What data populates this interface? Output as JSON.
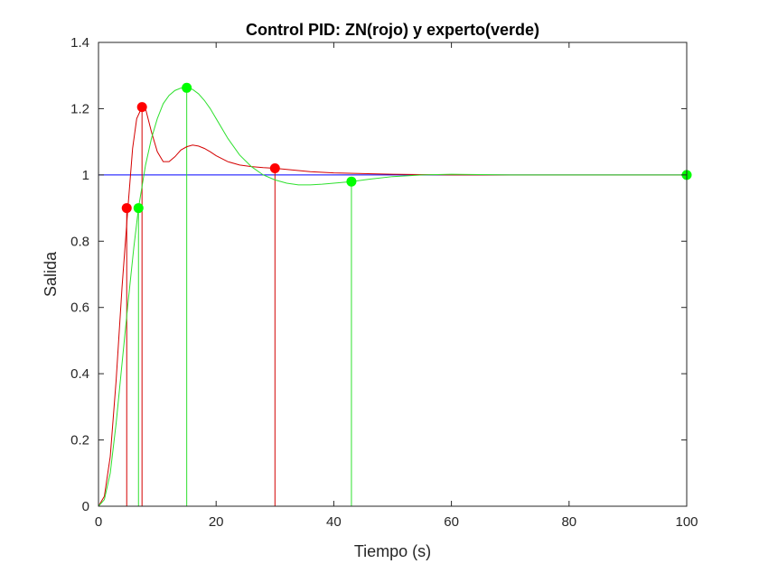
{
  "chart_data": {
    "type": "line",
    "title": "Control PID: ZN(rojo) y experto(verde)",
    "xlabel": "Tiempo (s)",
    "ylabel": "Salida",
    "xlim": [
      0,
      100
    ],
    "ylim": [
      0,
      1.4
    ],
    "xticks": [
      0,
      20,
      40,
      60,
      80,
      100
    ],
    "xtick_labels": [
      "0",
      "20",
      "40",
      "60",
      "80",
      "100"
    ],
    "yticks": [
      0,
      0.2,
      0.4,
      0.6,
      0.8,
      1,
      1.2,
      1.4
    ],
    "ytick_labels": [
      "0",
      "0.2",
      "0.4",
      "0.6",
      "0.8",
      "1",
      "1.2",
      "1.4"
    ],
    "grid": false,
    "legend": "none",
    "reference": {
      "y": 1,
      "color": "#0000ff"
    },
    "series": [
      {
        "color": "#d40000",
        "x": [
          0,
          1,
          2,
          3,
          4,
          5,
          5.8,
          6.5,
          7.4,
          8,
          9,
          10,
          11,
          12,
          13,
          14,
          15,
          16,
          17,
          18,
          19,
          20,
          22,
          24,
          26,
          28,
          30,
          33,
          36,
          40,
          45,
          50,
          55,
          60,
          65,
          70,
          80,
          90,
          100
        ],
        "y": [
          0,
          0.03,
          0.15,
          0.38,
          0.66,
          0.9,
          1.08,
          1.17,
          1.205,
          1.2,
          1.13,
          1.07,
          1.04,
          1.04,
          1.055,
          1.075,
          1.085,
          1.09,
          1.087,
          1.08,
          1.07,
          1.058,
          1.04,
          1.03,
          1.025,
          1.022,
          1.02,
          1.015,
          1.01,
          1.006,
          1.004,
          1.002,
          1.001,
          1.0,
          1.0,
          1.0,
          1.0,
          1.0,
          1.0
        ],
        "markers": [
          {
            "x": 4.8,
            "y": 0.9
          },
          {
            "x": 7.4,
            "y": 1.205
          },
          {
            "x": 30,
            "y": 1.02
          }
        ]
      },
      {
        "color": "#2ee02e",
        "x": [
          0,
          1,
          2,
          3,
          4,
          5,
          6,
          6.8,
          8,
          9,
          10,
          11,
          12,
          13,
          14,
          15,
          16,
          17,
          18,
          19,
          20,
          22,
          24,
          26,
          28,
          30,
          32,
          34,
          36,
          38,
          40,
          43,
          46,
          50,
          55,
          60,
          65,
          70,
          80,
          90,
          100
        ],
        "y": [
          0,
          0.02,
          0.1,
          0.25,
          0.43,
          0.61,
          0.78,
          0.9,
          1.03,
          1.11,
          1.17,
          1.215,
          1.24,
          1.255,
          1.262,
          1.263,
          1.258,
          1.245,
          1.225,
          1.2,
          1.17,
          1.11,
          1.06,
          1.025,
          1.0,
          0.985,
          0.975,
          0.97,
          0.97,
          0.972,
          0.975,
          0.98,
          0.987,
          0.995,
          1.0,
          1.002,
          1.001,
          1.0,
          1.0,
          1.0,
          1.0
        ],
        "markers": [
          {
            "x": 6.8,
            "y": 0.9
          },
          {
            "x": 15,
            "y": 1.263
          },
          {
            "x": 43,
            "y": 0.98
          },
          {
            "x": 100,
            "y": 1.0
          }
        ]
      }
    ]
  }
}
